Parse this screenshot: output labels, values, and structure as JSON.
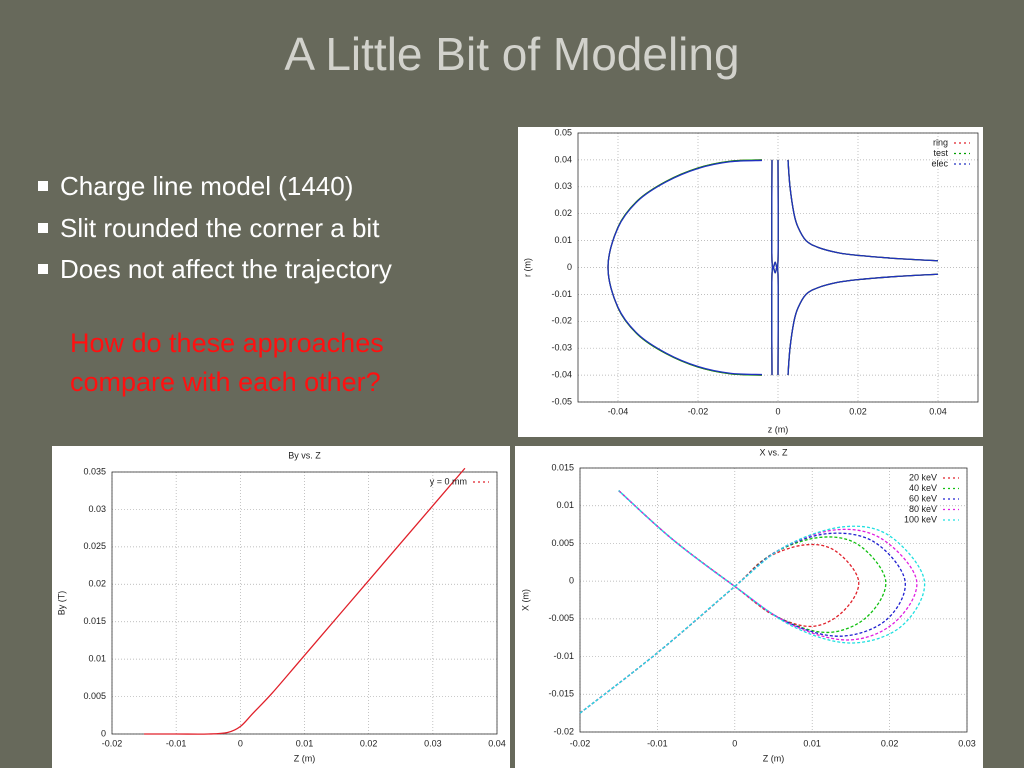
{
  "title": "A Little Bit of Modeling",
  "bullets": [
    "Charge line model (1440)",
    "Slit rounded the corner a bit",
    "Does not affect the trajectory"
  ],
  "question": [
    "How do these approaches",
    "compare with each other?"
  ],
  "chart_data": [
    {
      "type": "line",
      "x_label": "z (m)",
      "y_label": "r (m)",
      "xlim": [
        -0.05,
        0.05
      ],
      "xticks": [
        -0.04,
        -0.02,
        0,
        0.02,
        0.04
      ],
      "ylim": [
        -0.05,
        0.05
      ],
      "yticks": [
        -0.05,
        -0.04,
        -0.03,
        -0.02,
        -0.01,
        0,
        0.01,
        0.02,
        0.03,
        0.04,
        0.05
      ],
      "grid": true,
      "legend": "upper right",
      "x": [
        -0.004,
        -0.012,
        -0.02,
        -0.028,
        -0.035,
        -0.04,
        -0.0425,
        -0.04,
        -0.035,
        -0.028,
        -0.02,
        -0.012,
        -0.004,
        null,
        -0.0015,
        -0.0015,
        -0.0007,
        0,
        0,
        null,
        -0.0015,
        -0.0015,
        -0.0007,
        0,
        0,
        null,
        0.0025,
        0.003,
        0.004,
        0.005,
        0.007,
        0.01,
        0.015,
        0.02,
        0.03,
        0.04,
        null,
        0.0025,
        0.003,
        0.004,
        0.005,
        0.007,
        0.01,
        0.015,
        0.02,
        0.03,
        0.04
      ],
      "series": [
        {
          "name": "ring",
          "color": "#e0202a",
          "values": [
            0.04,
            0.0395,
            0.037,
            0.032,
            0.025,
            0.015,
            0,
            -0.015,
            -0.025,
            -0.032,
            -0.037,
            -0.0395,
            -0.04,
            null,
            0.04,
            0.0025,
            0.002,
            0.0025,
            0.04,
            null,
            -0.04,
            -0.0025,
            -0.002,
            -0.0025,
            -0.04,
            null,
            0.04,
            0.03,
            0.02,
            0.015,
            0.01,
            0.0075,
            0.0055,
            0.0045,
            0.0033,
            0.0025,
            null,
            -0.04,
            -0.03,
            -0.02,
            -0.015,
            -0.01,
            -0.0075,
            -0.0055,
            -0.0045,
            -0.0033,
            -0.0025
          ]
        },
        {
          "name": "test",
          "color": "#00a000",
          "values": [
            0.04,
            0.0395,
            0.037,
            0.032,
            0.025,
            0.015,
            0,
            -0.015,
            -0.025,
            -0.032,
            -0.037,
            -0.0395,
            -0.04,
            null,
            0.04,
            0.0025,
            0.002,
            0.0025,
            0.04,
            null,
            -0.04,
            -0.0025,
            -0.002,
            -0.0025,
            -0.04,
            null,
            0.04,
            0.03,
            0.02,
            0.015,
            0.01,
            0.0075,
            0.0055,
            0.0045,
            0.0033,
            0.0025,
            null,
            -0.04,
            -0.03,
            -0.02,
            -0.015,
            -0.01,
            -0.0075,
            -0.0055,
            -0.0045,
            -0.0033,
            -0.0025
          ]
        },
        {
          "name": "elec",
          "color": "#2030c0",
          "values": [
            0.0398,
            0.0393,
            0.0368,
            0.0318,
            0.0248,
            0.0148,
            0,
            -0.0148,
            -0.0248,
            -0.0318,
            -0.0368,
            -0.0393,
            -0.0398,
            null,
            0.04,
            0.0025,
            0.002,
            0.0025,
            0.04,
            null,
            -0.04,
            -0.0025,
            -0.002,
            -0.0025,
            -0.04,
            null,
            0.04,
            0.03,
            0.02,
            0.015,
            0.01,
            0.0075,
            0.0055,
            0.0045,
            0.0033,
            0.0025,
            null,
            -0.04,
            -0.03,
            -0.02,
            -0.015,
            -0.01,
            -0.0075,
            -0.0055,
            -0.0045,
            -0.0033,
            -0.0025
          ]
        }
      ]
    },
    {
      "type": "line",
      "title": "By vs. Z",
      "x_label": "Z (m)",
      "y_label": "By (T)",
      "xlim": [
        -0.02,
        0.04
      ],
      "xticks": [
        -0.02,
        -0.01,
        0,
        0.01,
        0.02,
        0.03,
        0.04
      ],
      "ylim": [
        0,
        0.035
      ],
      "yticks": [
        0,
        0.005,
        0.01,
        0.015,
        0.02,
        0.025,
        0.03,
        0.035
      ],
      "grid": true,
      "legend": "upper right",
      "x": [
        -0.015,
        -0.01,
        -0.005,
        -0.002,
        0,
        0.002,
        0.005,
        0.01,
        0.02,
        0.03,
        0.035
      ],
      "series": [
        {
          "name": "y = 0 mm",
          "color": "#e0202a",
          "values": [
            0,
            0,
            0,
            0.0002,
            0.001,
            0.0028,
            0.0055,
            0.0105,
            0.0205,
            0.0305,
            0.0355
          ]
        }
      ]
    },
    {
      "type": "line",
      "title": "X vs. Z",
      "x_label": "Z (m)",
      "y_label": "X (m)",
      "xlim": [
        -0.02,
        0.03
      ],
      "xticks": [
        -0.02,
        -0.01,
        0,
        0.01,
        0.02,
        0.03
      ],
      "ylim": [
        -0.02,
        0.015
      ],
      "yticks": [
        -0.02,
        -0.015,
        -0.01,
        -0.005,
        0,
        0.005,
        0.01,
        0.015
      ],
      "grid": true,
      "legend": "upper right",
      "line_style": "dashed",
      "series": [
        {
          "name": "20 keV",
          "color": "#e0202a",
          "x": [
            -0.02,
            -0.01,
            0,
            0.004,
            0.009,
            0.013,
            0.016,
            0.014,
            0.01,
            0.005,
            0,
            -0.008,
            -0.015
          ],
          "values": [
            -0.0175,
            -0.0095,
            -0.0007,
            0.003,
            0.0048,
            0.004,
            0,
            -0.004,
            -0.006,
            -0.0045,
            -0.0007,
            0.0055,
            0.012
          ]
        },
        {
          "name": "40 keV",
          "color": "#10c010",
          "x": [
            -0.02,
            -0.01,
            0,
            0.005,
            0.011,
            0.016,
            0.0195,
            0.017,
            0.012,
            0.006,
            0,
            -0.008,
            -0.015
          ],
          "values": [
            -0.0175,
            -0.0095,
            -0.0007,
            0.0037,
            0.0058,
            0.0048,
            0,
            -0.0048,
            -0.0068,
            -0.005,
            -0.0007,
            0.0055,
            0.012
          ]
        },
        {
          "name": "60 keV",
          "color": "#2020d0",
          "x": [
            -0.02,
            -0.01,
            0,
            0.0055,
            0.012,
            0.018,
            0.022,
            0.0195,
            0.0135,
            0.0065,
            0,
            -0.008,
            -0.015
          ],
          "values": [
            -0.0175,
            -0.0095,
            -0.0007,
            0.004,
            0.0063,
            0.0052,
            0,
            -0.0052,
            -0.0073,
            -0.0053,
            -0.0007,
            0.0055,
            0.012
          ]
        },
        {
          "name": "80 keV",
          "color": "#e020e0",
          "x": [
            -0.02,
            -0.01,
            0,
            0.006,
            0.013,
            0.019,
            0.0235,
            0.0205,
            0.0145,
            0.007,
            0,
            -0.008,
            -0.015
          ],
          "values": [
            -0.0175,
            -0.0095,
            -0.0007,
            0.0043,
            0.0068,
            0.0056,
            0,
            -0.0056,
            -0.0078,
            -0.0056,
            -0.0007,
            0.0055,
            0.012
          ]
        },
        {
          "name": "100 keV",
          "color": "#20e0e0",
          "x": [
            -0.02,
            -0.01,
            0,
            0.0065,
            0.014,
            0.02,
            0.0245,
            0.0215,
            0.015,
            0.0075,
            0,
            -0.008,
            -0.015
          ],
          "values": [
            -0.0175,
            -0.0095,
            -0.0007,
            0.0046,
            0.0072,
            0.006,
            0,
            -0.006,
            -0.0082,
            -0.006,
            -0.0007,
            0.0055,
            0.012
          ]
        }
      ]
    }
  ]
}
